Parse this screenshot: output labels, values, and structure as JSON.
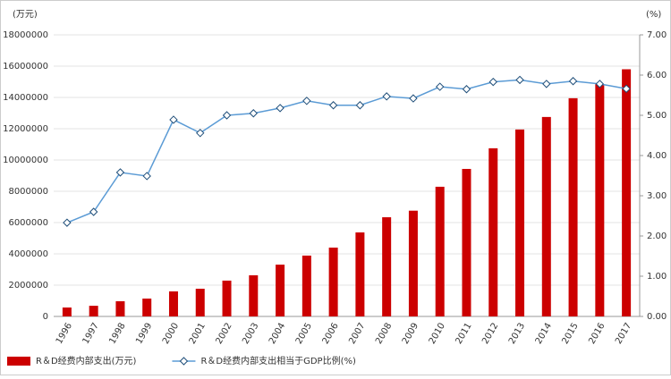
{
  "chart_data": {
    "type": "bar",
    "y_label": "(万元)",
    "y2_label": "(%)",
    "categories": [
      "1996",
      "1997",
      "1998",
      "1999",
      "2000",
      "2001",
      "2002",
      "2003",
      "2004",
      "2005",
      "2006",
      "2007",
      "2008",
      "2009",
      "2010",
      "2011",
      "2012",
      "2013",
      "2014",
      "2015",
      "2016",
      "2017"
    ],
    "series": [
      {
        "name": "R＆D经费内部支出(万元)",
        "color": "#cc0000",
        "type": "bar",
        "values": [
          570000,
          680000,
          970000,
          1140000,
          1600000,
          1770000,
          2290000,
          2630000,
          3310000,
          3890000,
          4400000,
          5370000,
          6340000,
          6760000,
          8290000,
          9430000,
          10750000,
          11950000,
          12750000,
          13950000,
          14850000,
          15800000
        ]
      },
      {
        "name": "R＆D经费内部支出相当于GDP比例(%)",
        "color": "#5b9bd5",
        "type": "line",
        "axis": "y2",
        "values": [
          2.33,
          2.6,
          3.58,
          3.49,
          4.89,
          4.56,
          5.0,
          5.05,
          5.18,
          5.36,
          5.25,
          5.25,
          5.47,
          5.42,
          5.71,
          5.65,
          5.83,
          5.88,
          5.78,
          5.85,
          5.78,
          5.66
        ]
      }
    ],
    "ylim": [
      0,
      18000000
    ],
    "yticks": [
      0,
      2000000,
      4000000,
      6000000,
      8000000,
      10000000,
      12000000,
      14000000,
      16000000,
      18000000
    ],
    "y2lim": [
      0,
      7
    ],
    "y2ticks": [
      {
        "value": 0,
        "label": "0.00"
      },
      {
        "value": 1,
        "label": "1.00"
      },
      {
        "value": 2,
        "label": "2.00"
      },
      {
        "value": 3,
        "label": "3.00"
      },
      {
        "value": 4,
        "label": "4.00"
      },
      {
        "value": 5,
        "label": "5.00"
      },
      {
        "value": 6,
        "label": "6.00"
      },
      {
        "value": 7,
        "label": "7.00"
      }
    ],
    "grid": true,
    "legend": "bottom"
  }
}
